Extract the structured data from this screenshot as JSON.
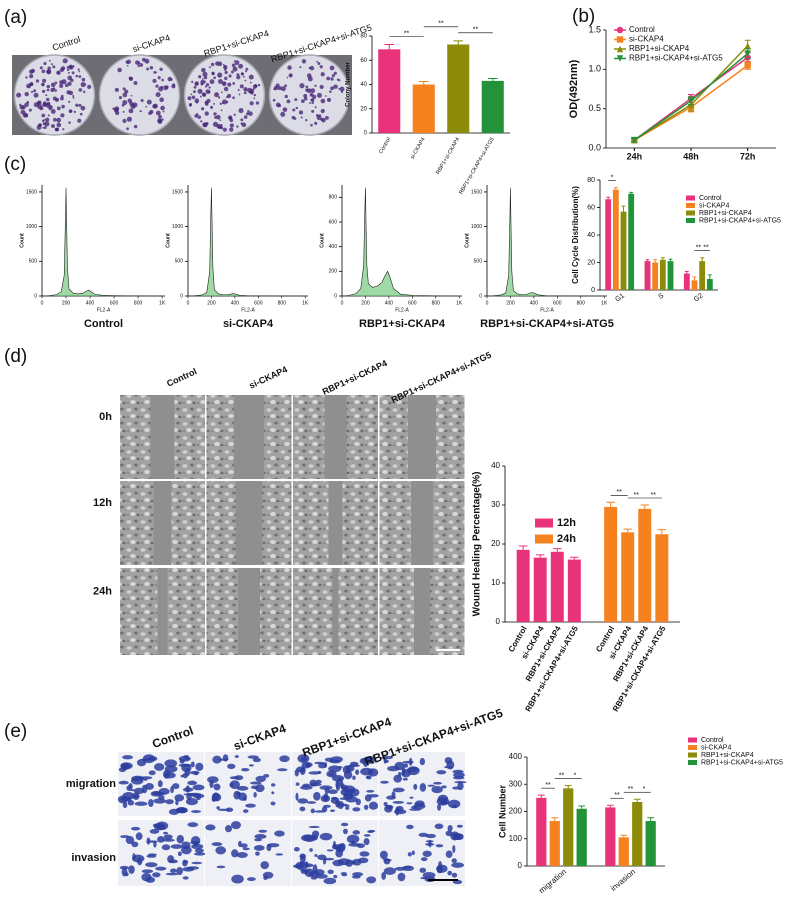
{
  "panels": {
    "a": {
      "label": "(a)",
      "columns": [
        "Control",
        "si-CKAP4",
        "RBP1+si-CKAP4",
        "RBP1+si-CKAP4+si-ATG5"
      ]
    },
    "b": {
      "label": "(b)"
    },
    "c": {
      "label": "(c)"
    },
    "d": {
      "label": "(d)",
      "columns": [
        "Control",
        "si-CKAP4",
        "RBP1+si-CKAP4",
        "RBP1+si-CKAP4+si-ATG5"
      ],
      "rows": [
        "0h",
        "12h",
        "24h"
      ]
    },
    "e": {
      "label": "(e)",
      "columns": [
        "Control",
        "si-CKAP4",
        "RBP1+si-CKAP4",
        "RBP1+si-CKAP4+si-ATG5"
      ],
      "rows": [
        "migration",
        "invasion"
      ]
    }
  },
  "chart_data": [
    {
      "type": "bar",
      "y_label": "Colony Number",
      "categories": [
        "Control",
        "si-CKAP4",
        "RBP1+si-CKAP4",
        "RBP1+si-CKAP4+si-ATG5"
      ],
      "values": [
        69,
        40,
        73,
        43
      ],
      "errors": [
        4,
        2.5,
        3,
        2
      ],
      "colors": [
        "#e8327a",
        "#f5821f",
        "#8c8c0a",
        "#23933a"
      ],
      "ylim": [
        0,
        80
      ],
      "yticks": [
        0,
        20,
        40,
        60,
        80
      ],
      "annotations": [
        "**",
        "**",
        "**"
      ]
    },
    {
      "type": "line",
      "y_label": "OD(492nm)",
      "categories": [
        "24h",
        "48h",
        "72h"
      ],
      "series": [
        {
          "name": "Control",
          "color": "#e8327a",
          "values": [
            0.1,
            0.63,
            1.15
          ],
          "errors": [
            0.02,
            0.05,
            0.06
          ]
        },
        {
          "name": "si-CKAP4",
          "color": "#f5821f",
          "values": [
            0.1,
            0.52,
            1.05
          ],
          "errors": [
            0.02,
            0.06,
            0.05
          ]
        },
        {
          "name": "RBP1+si-CKAP4",
          "color": "#8c8c0a",
          "values": [
            0.1,
            0.55,
            1.3
          ],
          "errors": [
            0.02,
            0.08,
            0.07
          ]
        },
        {
          "name": "RBP1+si-CKAP4+si-ATG5",
          "color": "#23933a",
          "values": [
            0.1,
            0.6,
            1.2
          ],
          "errors": [
            0.02,
            0.05,
            0.06
          ]
        }
      ],
      "ylim": [
        0,
        1.5
      ],
      "yticks": [
        {
          "value": 0,
          "label": "0.0"
        },
        {
          "value": 0.5,
          "label": "0.5"
        },
        {
          "value": 1,
          "label": "1.0"
        },
        {
          "value": 1.5,
          "label": "1.5"
        }
      ],
      "legend": "upper left"
    },
    {
      "type": "area",
      "title": "Control",
      "x_label": "FL2-A",
      "y_label": "Count",
      "color": "#5fbf6a",
      "x": [
        0,
        60,
        120,
        160,
        185,
        195,
        200,
        205,
        212,
        225,
        260,
        300,
        340,
        370,
        390,
        410,
        440,
        500,
        600,
        800,
        1000
      ],
      "values": [
        0,
        5,
        20,
        60,
        300,
        1100,
        1560,
        1050,
        400,
        100,
        40,
        30,
        40,
        70,
        85,
        60,
        25,
        10,
        5,
        2,
        0
      ],
      "xlim": [
        0,
        1024
      ],
      "xticks": [
        0,
        200,
        400,
        600,
        800,
        {
          "value": 1000,
          "label": "1K"
        }
      ],
      "ylim": [
        0,
        1600
      ],
      "yticks": [
        0,
        500,
        1000,
        1500
      ]
    },
    {
      "type": "area",
      "title": "si-CKAP4",
      "x_label": "FL2-A",
      "y_label": "Count",
      "color": "#5fbf6a",
      "x": [
        0,
        60,
        120,
        160,
        185,
        195,
        200,
        205,
        212,
        225,
        260,
        300,
        340,
        370,
        390,
        410,
        440,
        500,
        600,
        800,
        1000
      ],
      "values": [
        0,
        5,
        15,
        50,
        350,
        1200,
        1560,
        1100,
        420,
        90,
        30,
        20,
        20,
        30,
        35,
        25,
        10,
        5,
        2,
        1,
        0
      ],
      "xlim": [
        0,
        1024
      ],
      "xticks": [
        0,
        200,
        400,
        600,
        800,
        {
          "value": 1000,
          "label": "1K"
        }
      ],
      "ylim": [
        0,
        1600
      ],
      "yticks": [
        0,
        500,
        1000,
        1500
      ]
    },
    {
      "type": "area",
      "title": "RBP1+si-CKAP4",
      "x_label": "FL2-A",
      "y_label": "Count",
      "color": "#5fbf6a",
      "x": [
        0,
        60,
        120,
        160,
        185,
        195,
        200,
        205,
        212,
        225,
        260,
        300,
        340,
        370,
        390,
        410,
        440,
        500,
        600,
        800,
        1000
      ],
      "values": [
        0,
        5,
        20,
        60,
        250,
        700,
        880,
        600,
        250,
        100,
        70,
        80,
        110,
        170,
        200,
        150,
        60,
        15,
        5,
        2,
        0
      ],
      "xlim": [
        0,
        1024
      ],
      "xticks": [
        0,
        200,
        400,
        600,
        800,
        {
          "value": 1000,
          "label": "1K"
        }
      ],
      "ylim": [
        0,
        900
      ],
      "yticks": [
        0,
        200,
        400,
        600,
        800
      ]
    },
    {
      "type": "area",
      "title": "RBP1+si-CKAP4+si-ATG5",
      "x_label": "FL2-A",
      "y_label": "Count",
      "color": "#5fbf6a",
      "x": [
        0,
        60,
        120,
        160,
        185,
        195,
        200,
        205,
        212,
        225,
        260,
        300,
        340,
        370,
        390,
        410,
        440,
        500,
        600,
        800,
        1000
      ],
      "values": [
        0,
        5,
        15,
        45,
        300,
        1100,
        1560,
        1000,
        350,
        80,
        30,
        20,
        25,
        45,
        50,
        35,
        15,
        5,
        2,
        1,
        0
      ],
      "xlim": [
        0,
        1024
      ],
      "xticks": [
        0,
        200,
        400,
        600,
        800,
        {
          "value": 1000,
          "label": "1K"
        }
      ],
      "ylim": [
        0,
        1600
      ],
      "yticks": [
        0,
        500,
        1000,
        1500
      ]
    },
    {
      "type": "grouped-bar",
      "y_label": "Cell Cycle Distribution(%)",
      "categories": [
        "G1",
        "S",
        "G2"
      ],
      "series": [
        {
          "name": "Control",
          "color": "#e8327a",
          "values": [
            66,
            21,
            12
          ],
          "errors": [
            1.5,
            1,
            1.5
          ]
        },
        {
          "name": "si-CKAP4",
          "color": "#f5821f",
          "values": [
            73,
            20,
            7
          ],
          "errors": [
            1.5,
            2,
            2.5
          ]
        },
        {
          "name": "RBP1+si-CKAP4",
          "color": "#8c8c0a",
          "values": [
            57,
            22,
            21
          ],
          "errors": [
            4,
            1.5,
            2.5
          ]
        },
        {
          "name": "RBP1+si-CKAP4+si-ATG5",
          "color": "#23933a",
          "values": [
            70,
            21,
            8
          ],
          "errors": [
            1,
            1.5,
            3
          ]
        }
      ],
      "ylim": [
        0,
        80
      ],
      "yticks": [
        0,
        20,
        40,
        60,
        80
      ],
      "legend": "upper right",
      "annotations": [
        "*",
        "**",
        "**"
      ]
    },
    {
      "type": "grouped-bar",
      "y_label": "Wound Healing Percentage(%)",
      "group_by": "series",
      "categories": [
        "Control",
        "si-CKAP4",
        "RBP1+si-CKAP4",
        "RBP1+si-CKAP4+si-ATG5"
      ],
      "series": [
        {
          "name": "12h",
          "color": "#e8327a",
          "values": [
            18.5,
            16.5,
            18,
            16
          ],
          "errors": [
            1,
            0.7,
            0.8,
            0.6
          ]
        },
        {
          "name": "24h",
          "color": "#f5821f",
          "values": [
            29.5,
            23,
            29,
            22.5
          ],
          "errors": [
            1.2,
            0.8,
            1,
            1.2
          ]
        }
      ],
      "ylim": [
        0,
        40
      ],
      "yticks": [
        0,
        10,
        20,
        30,
        40
      ],
      "legend": "upper left",
      "annotations": [
        "**",
        "**",
        "**"
      ]
    },
    {
      "type": "grouped-bar",
      "y_label": "Cell Number",
      "categories": [
        "migration",
        "invasion"
      ],
      "series": [
        {
          "name": "Control",
          "color": "#e8327a",
          "values": [
            250,
            215
          ],
          "errors": [
            10,
            8
          ]
        },
        {
          "name": "si-CKAP4",
          "color": "#f5821f",
          "values": [
            165,
            105
          ],
          "errors": [
            12,
            8
          ]
        },
        {
          "name": "RBP1+si-CKAP4",
          "color": "#8c8c0a",
          "values": [
            285,
            235
          ],
          "errors": [
            10,
            10
          ]
        },
        {
          "name": "RBP1+si-CKAP4+si-ATG5",
          "color": "#23933a",
          "values": [
            210,
            165
          ],
          "errors": [
            10,
            12
          ]
        }
      ],
      "ylim": [
        0,
        400
      ],
      "yticks": [
        0,
        100,
        200,
        300,
        400
      ],
      "legend": "outside upper right",
      "annotations": [
        "**",
        "**",
        "*",
        "**",
        "**",
        "*"
      ]
    }
  ]
}
